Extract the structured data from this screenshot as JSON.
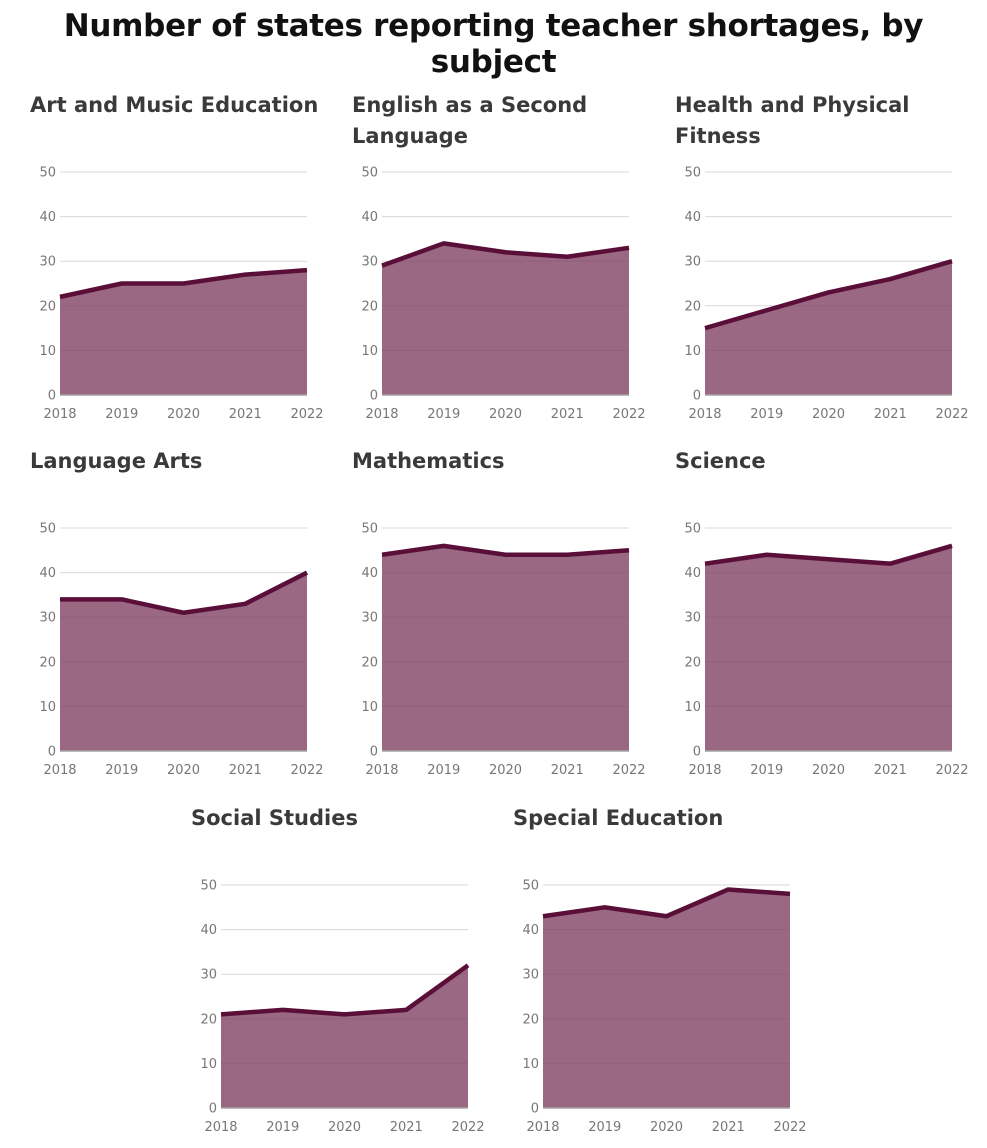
{
  "title": "Number of states reporting teacher shortages, by subject",
  "colors": {
    "fill": "#9a6882",
    "line": "#5a0f38",
    "grid": "#e6e6e6",
    "axis": "#a3a3a3",
    "tick": "#777777"
  },
  "chart_data": [
    {
      "type": "area",
      "title": "Art and Music Education",
      "x": [
        2018,
        2019,
        2020,
        2021,
        2022
      ],
      "values": [
        22,
        25,
        25,
        27,
        28
      ],
      "xticks": [
        "2018",
        "2019",
        "2020",
        "2021",
        "2022"
      ],
      "yticks": [
        "0",
        "10",
        "20",
        "30",
        "40",
        "50"
      ],
      "ylim": [
        0,
        50
      ]
    },
    {
      "type": "area",
      "title": "English as a Second Language",
      "x": [
        2018,
        2019,
        2020,
        2021,
        2022
      ],
      "values": [
        29,
        34,
        32,
        31,
        33
      ],
      "xticks": [
        "2018",
        "2019",
        "2020",
        "2021",
        "2022"
      ],
      "yticks": [
        "0",
        "10",
        "20",
        "30",
        "40",
        "50"
      ],
      "ylim": [
        0,
        50
      ]
    },
    {
      "type": "area",
      "title": "Health and Physical Fitness",
      "x": [
        2018,
        2019,
        2020,
        2021,
        2022
      ],
      "values": [
        15,
        19,
        23,
        26,
        30
      ],
      "xticks": [
        "2018",
        "2019",
        "2020",
        "2021",
        "2022"
      ],
      "yticks": [
        "0",
        "10",
        "20",
        "30",
        "40",
        "50"
      ],
      "ylim": [
        0,
        50
      ]
    },
    {
      "type": "area",
      "title": "Language Arts",
      "x": [
        2018,
        2019,
        2020,
        2021,
        2022
      ],
      "values": [
        34,
        34,
        31,
        33,
        40
      ],
      "xticks": [
        "2018",
        "2019",
        "2020",
        "2021",
        "2022"
      ],
      "yticks": [
        "0",
        "10",
        "20",
        "30",
        "40",
        "50"
      ],
      "ylim": [
        0,
        50
      ]
    },
    {
      "type": "area",
      "title": "Mathematics",
      "x": [
        2018,
        2019,
        2020,
        2021,
        2022
      ],
      "values": [
        44,
        46,
        44,
        44,
        45
      ],
      "xticks": [
        "2018",
        "2019",
        "2020",
        "2021",
        "2022"
      ],
      "yticks": [
        "0",
        "10",
        "20",
        "30",
        "40",
        "50"
      ],
      "ylim": [
        0,
        50
      ]
    },
    {
      "type": "area",
      "title": "Science",
      "x": [
        2018,
        2019,
        2020,
        2021,
        2022
      ],
      "values": [
        42,
        44,
        43,
        42,
        46
      ],
      "xticks": [
        "2018",
        "2019",
        "2020",
        "2021",
        "2022"
      ],
      "yticks": [
        "0",
        "10",
        "20",
        "30",
        "40",
        "50"
      ],
      "ylim": [
        0,
        50
      ]
    },
    {
      "type": "area",
      "title": "Social Studies",
      "x": [
        2018,
        2019,
        2020,
        2021,
        2022
      ],
      "values": [
        21,
        22,
        21,
        22,
        32
      ],
      "xticks": [
        "2018",
        "2019",
        "2020",
        "2021",
        "2022"
      ],
      "yticks": [
        "0",
        "10",
        "20",
        "30",
        "40",
        "50"
      ],
      "ylim": [
        0,
        50
      ]
    },
    {
      "type": "area",
      "title": "Special Education",
      "x": [
        2018,
        2019,
        2020,
        2021,
        2022
      ],
      "values": [
        43,
        45,
        43,
        49,
        48
      ],
      "xticks": [
        "2018",
        "2019",
        "2020",
        "2021",
        "2022"
      ],
      "yticks": [
        "0",
        "10",
        "20",
        "30",
        "40",
        "50"
      ],
      "ylim": [
        0,
        50
      ]
    }
  ]
}
